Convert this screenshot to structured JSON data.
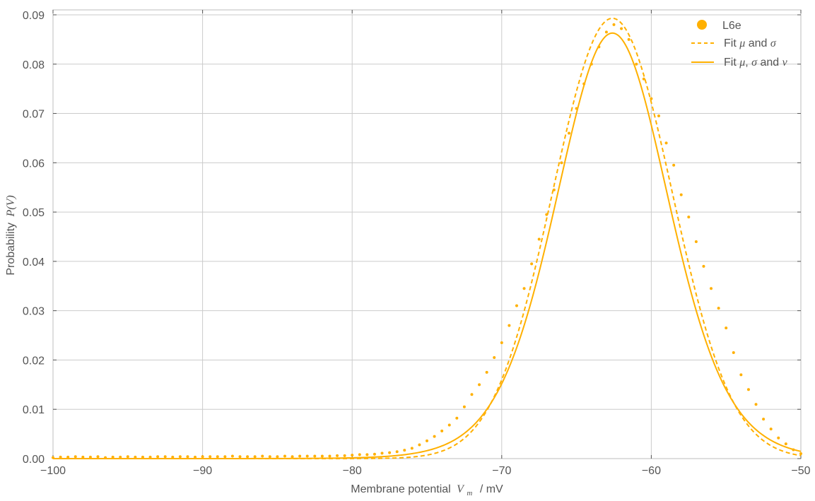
{
  "chart_data": {
    "type": "scatter",
    "title": "",
    "xlabel": {
      "text": "Membrane potential",
      "math": "V",
      "sub": "m",
      "unit": "/ mV"
    },
    "ylabel": {
      "text": "Probability",
      "math": "P(V)"
    },
    "xlim": [
      -100,
      -50
    ],
    "ylim": [
      0,
      0.091
    ],
    "xticks": [
      -100,
      -90,
      -80,
      -70,
      -60,
      -50
    ],
    "xtick_labels": [
      "−100",
      "−90",
      "−80",
      "−70",
      "−60",
      "−50"
    ],
    "yticks": [
      0,
      0.01,
      0.02,
      0.03,
      0.04,
      0.05,
      0.06,
      0.07,
      0.08,
      0.09
    ],
    "ytick_labels": [
      "0.00",
      "0.01",
      "0.02",
      "0.03",
      "0.04",
      "0.05",
      "0.06",
      "0.07",
      "0.08",
      "0.09"
    ],
    "grid": true,
    "legend_position": "top-right",
    "color": "#FFB000",
    "series": [
      {
        "name": "L6e",
        "kind": "points",
        "x": [
          -100,
          -99.5,
          -99,
          -98.5,
          -98,
          -97.5,
          -97,
          -96.5,
          -96,
          -95.5,
          -95,
          -94.5,
          -94,
          -93.5,
          -93,
          -92.5,
          -92,
          -91.5,
          -91,
          -90.5,
          -90,
          -89.5,
          -89,
          -88.5,
          -88,
          -87.5,
          -87,
          -86.5,
          -86,
          -85.5,
          -85,
          -84.5,
          -84,
          -83.5,
          -83,
          -82.5,
          -82,
          -81.5,
          -81,
          -80.5,
          -80,
          -79.5,
          -79,
          -78.5,
          -78,
          -77.5,
          -77,
          -76.5,
          -76,
          -75.5,
          -75,
          -74.5,
          -74,
          -73.5,
          -73,
          -72.5,
          -72,
          -71.5,
          -71,
          -70.5,
          -70,
          -69.5,
          -69,
          -68.5,
          -68,
          -67.5,
          -67,
          -66.5,
          -66,
          -65.5,
          -65,
          -64.5,
          -64,
          -63.5,
          -63,
          -62.5,
          -62,
          -61.5,
          -61,
          -60.5,
          -60,
          -59.5,
          -59,
          -58.5,
          -58,
          -57.5,
          -57,
          -56.5,
          -56,
          -55.5,
          -55,
          -54.5,
          -54,
          -53.5,
          -53,
          -52.5,
          -52,
          -51.5,
          -51,
          -50.5,
          -50
        ],
        "y": [
          0.0002,
          0.0003,
          0.0003,
          0.0004,
          0.0003,
          0.0003,
          0.0004,
          0.0002,
          0.0003,
          0.0003,
          0.0004,
          0.0003,
          0.0003,
          0.0003,
          0.0004,
          0.0004,
          0.0003,
          0.0004,
          0.0004,
          0.0003,
          0.0004,
          0.0004,
          0.0004,
          0.0004,
          0.0005,
          0.0004,
          0.0004,
          0.0004,
          0.0005,
          0.0004,
          0.0004,
          0.0005,
          0.0004,
          0.0005,
          0.0005,
          0.0005,
          0.0005,
          0.0005,
          0.0006,
          0.0006,
          0.0007,
          0.0008,
          0.0008,
          0.0009,
          0.0011,
          0.0012,
          0.0014,
          0.0017,
          0.0021,
          0.0028,
          0.0036,
          0.0045,
          0.0056,
          0.0068,
          0.0082,
          0.0105,
          0.013,
          0.015,
          0.0175,
          0.0205,
          0.0235,
          0.027,
          0.031,
          0.0345,
          0.0395,
          0.0445,
          0.0495,
          0.0545,
          0.06,
          0.066,
          0.071,
          0.076,
          0.08,
          0.0835,
          0.0865,
          0.088,
          0.0872,
          0.085,
          0.08,
          0.077,
          0.073,
          0.0695,
          0.064,
          0.0595,
          0.0535,
          0.049,
          0.044,
          0.039,
          0.0345,
          0.0305,
          0.0265,
          0.0215,
          0.017,
          0.014,
          0.011,
          0.008,
          0.006,
          0.0042,
          0.003,
          0.0018,
          0.001
        ]
      },
      {
        "name": "Fit μ and σ",
        "name_parts": [
          "Fit ",
          "μ",
          " and ",
          "σ"
        ],
        "kind": "dashed-line",
        "model": "gaussian",
        "mu": -62.6,
        "sigma": 3.99,
        "amplitude": 0.0893
      },
      {
        "name": "Fit μ, σ and ν",
        "name_parts": [
          "Fit ",
          "μ",
          ", ",
          "σ",
          " and ",
          "ν"
        ],
        "kind": "solid-line",
        "model": "student-t",
        "mu": -62.6,
        "sigma": 3.85,
        "nu": 11,
        "amplitude": 0.0863
      }
    ]
  }
}
